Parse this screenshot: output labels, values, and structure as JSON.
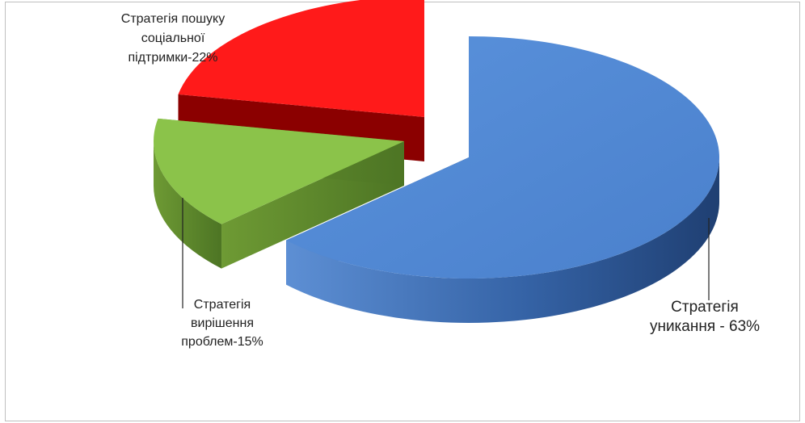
{
  "chart_data": {
    "type": "pie",
    "style": "3d-exploded",
    "slices": [
      {
        "value": 63,
        "label_lines": [
          "Стратегія",
          "уникання - 63%"
        ],
        "color": "#4f86d0"
      },
      {
        "value": 15,
        "label_lines": [
          "Стратегія",
          "вирішення",
          "проблем-15%"
        ],
        "color": "#8bc34a"
      },
      {
        "value": 22,
        "label_lines": [
          "Стратегія пошуку",
          "соціальної",
          "підтримки-22%"
        ],
        "color": "#ff1a1a"
      }
    ],
    "legend": "none"
  }
}
